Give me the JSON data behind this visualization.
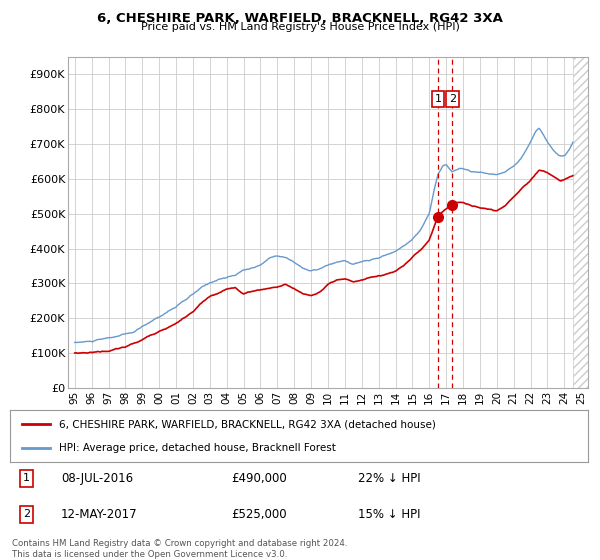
{
  "title": "6, CHESHIRE PARK, WARFIELD, BRACKNELL, RG42 3XA",
  "subtitle": "Price paid vs. HM Land Registry's House Price Index (HPI)",
  "ylabel_ticks": [
    "£0",
    "£100K",
    "£200K",
    "£300K",
    "£400K",
    "£500K",
    "£600K",
    "£700K",
    "£800K",
    "£900K"
  ],
  "ytick_vals": [
    0,
    100000,
    200000,
    300000,
    400000,
    500000,
    600000,
    700000,
    800000,
    900000
  ],
  "ylim": [
    0,
    950000
  ],
  "xlim_start": 1994.6,
  "xlim_end": 2025.4,
  "hpi_color": "#6699cc",
  "price_color": "#cc0000",
  "marker1_date": 2016.52,
  "marker1_price": 490000,
  "marker1_label": "1",
  "marker2_date": 2017.36,
  "marker2_price": 525000,
  "marker2_label": "2",
  "legend_line1": "6, CHESHIRE PARK, WARFIELD, BRACKNELL, RG42 3XA (detached house)",
  "legend_line2": "HPI: Average price, detached house, Bracknell Forest",
  "note1_label": "1",
  "note1_date": "08-JUL-2016",
  "note1_price": "£490,000",
  "note1_pct": "22% ↓ HPI",
  "note2_label": "2",
  "note2_date": "12-MAY-2017",
  "note2_price": "£525,000",
  "note2_pct": "15% ↓ HPI",
  "footer": "Contains HM Land Registry data © Crown copyright and database right 2024.\nThis data is licensed under the Open Government Licence v3.0.",
  "background_color": "#ffffff",
  "grid_color": "#cccccc"
}
